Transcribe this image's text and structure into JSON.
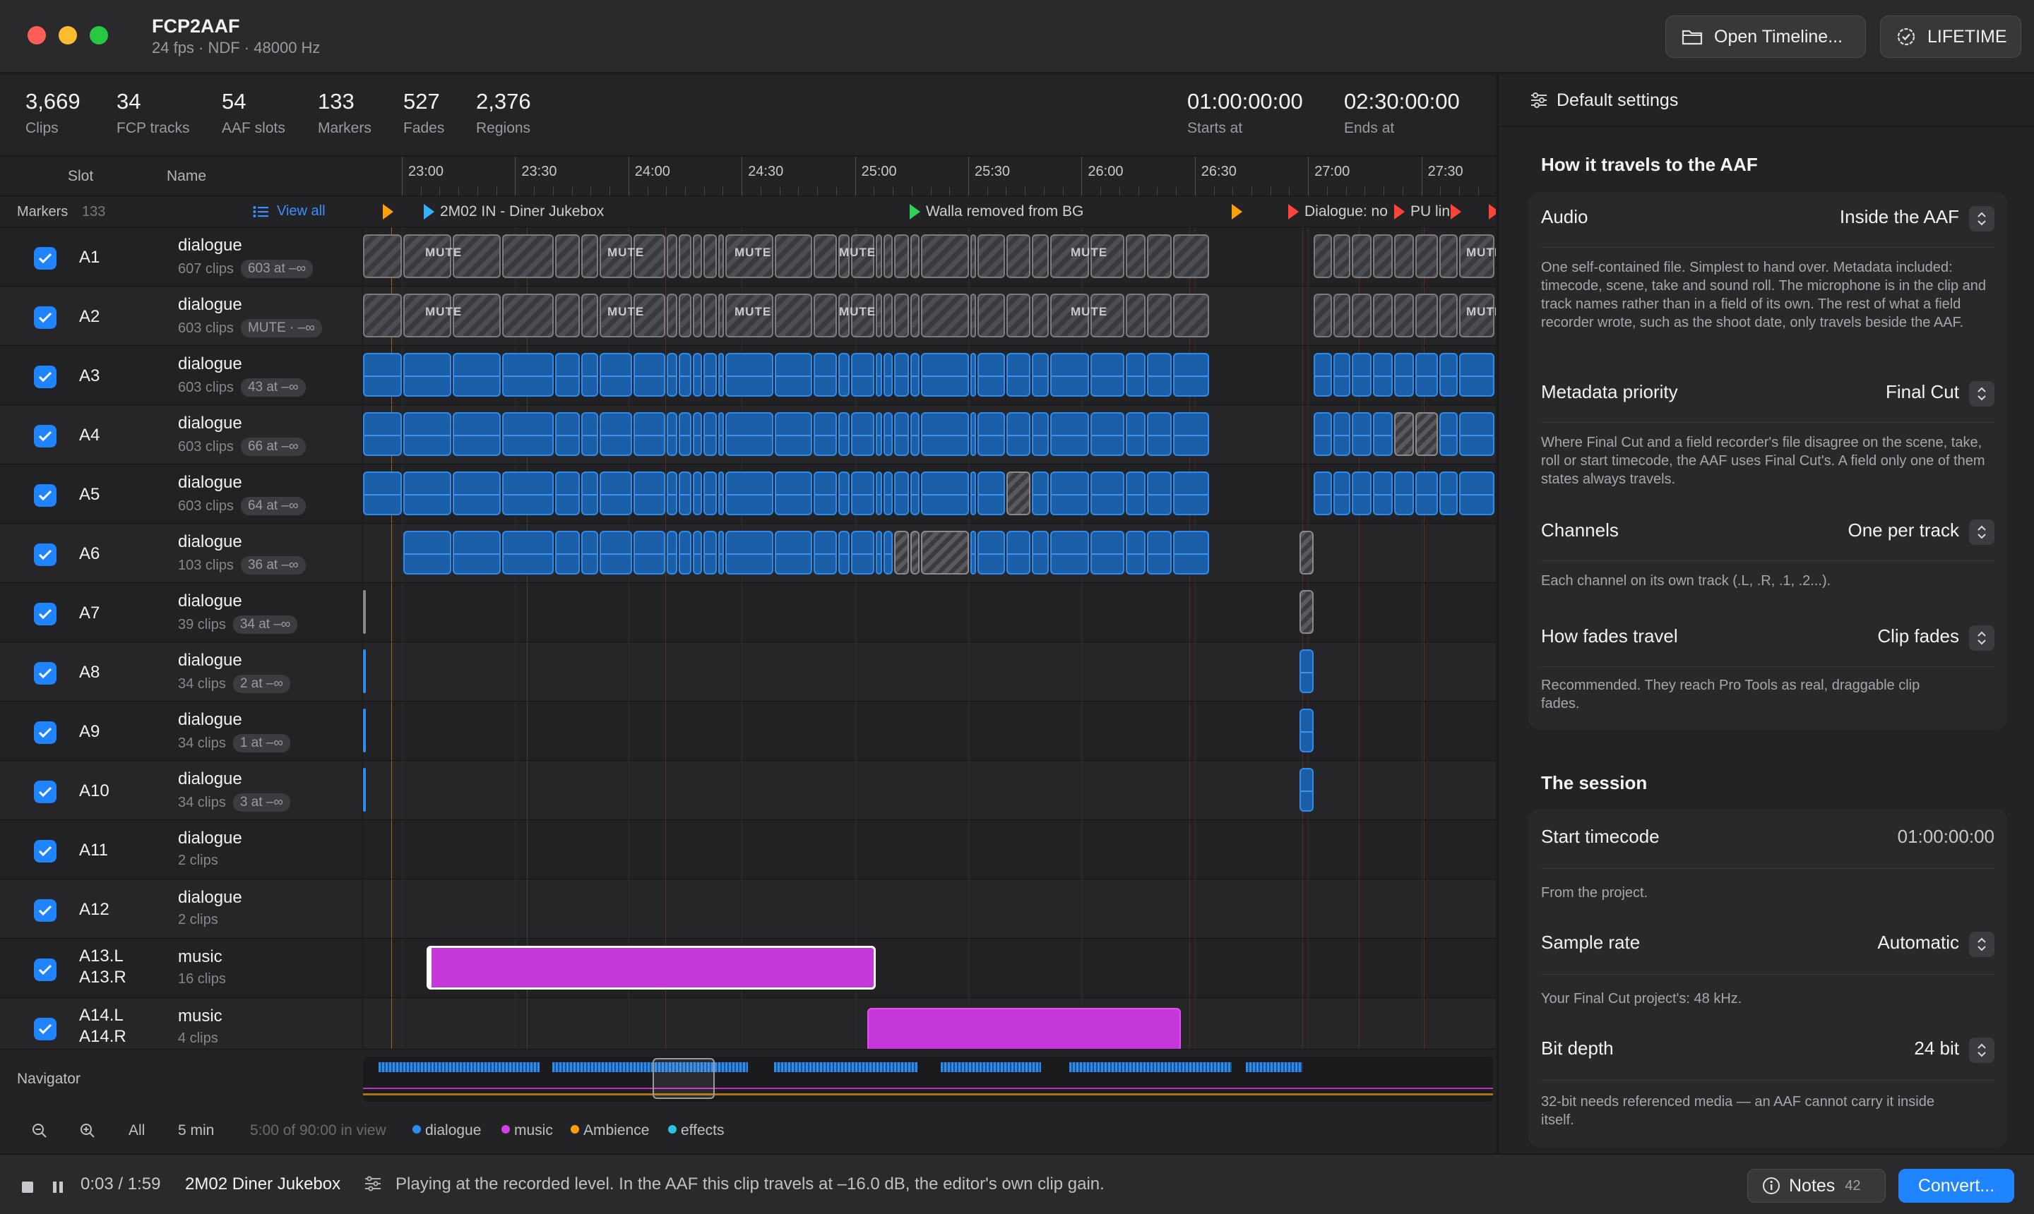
{
  "app": {
    "title": "FCP2AAF",
    "subtitle": "24 fps · NDF · 48000 Hz"
  },
  "toolbar": {
    "open_label": "Open Timeline...",
    "lifetime_label": "LIFETIME"
  },
  "stats": [
    {
      "value": "3,669",
      "label": "Clips"
    },
    {
      "value": "34",
      "label": "FCP tracks"
    },
    {
      "value": "54",
      "label": "AAF slots"
    },
    {
      "value": "133",
      "label": "Markers"
    },
    {
      "value": "527",
      "label": "Fades"
    },
    {
      "value": "2,376",
      "label": "Regions"
    }
  ],
  "time": {
    "start_value": "01:00:00:00",
    "start_label": "Starts at",
    "end_value": "02:30:00:00",
    "end_label": "Ends at"
  },
  "columns": {
    "slot": "Slot",
    "name": "Name"
  },
  "ruler": [
    "23:00",
    "23:30",
    "24:00",
    "24:30",
    "25:00",
    "25:30",
    "26:00",
    "26:30",
    "27:00",
    "27:30"
  ],
  "markers": {
    "label": "Markers",
    "count": "133",
    "view_all": "View all",
    "items": [
      {
        "text": "",
        "color": "#ff9f0a"
      },
      {
        "text": "2M02 IN - Diner Jukebox",
        "color": "#33b1ff"
      },
      {
        "text": "Walla removed from BG",
        "color": "#30d158"
      },
      {
        "text": "",
        "color": "#ff9f0a"
      },
      {
        "text": "Dialogue: no",
        "color": "#ff453a"
      },
      {
        "text": "PU lin",
        "color": "#ff453a"
      },
      {
        "text": "",
        "color": "#ff453a"
      }
    ]
  },
  "tracks": [
    {
      "slot": "A1",
      "slot2": "",
      "name": "dialogue",
      "clips": "607 clips",
      "badge": "603 at –∞"
    },
    {
      "slot": "A2",
      "slot2": "",
      "name": "dialogue",
      "clips": "603 clips",
      "badge": "MUTE · –∞"
    },
    {
      "slot": "A3",
      "slot2": "",
      "name": "dialogue",
      "clips": "603 clips",
      "badge": "43 at –∞"
    },
    {
      "slot": "A4",
      "slot2": "",
      "name": "dialogue",
      "clips": "603 clips",
      "badge": "66 at –∞"
    },
    {
      "slot": "A5",
      "slot2": "",
      "name": "dialogue",
      "clips": "603 clips",
      "badge": "64 at –∞"
    },
    {
      "slot": "A6",
      "slot2": "",
      "name": "dialogue",
      "clips": "103 clips",
      "badge": "36 at –∞"
    },
    {
      "slot": "A7",
      "slot2": "",
      "name": "dialogue",
      "clips": "39 clips",
      "badge": "34 at –∞"
    },
    {
      "slot": "A8",
      "slot2": "",
      "name": "dialogue",
      "clips": "34 clips",
      "badge": "2 at –∞"
    },
    {
      "slot": "A9",
      "slot2": "",
      "name": "dialogue",
      "clips": "34 clips",
      "badge": "1 at –∞"
    },
    {
      "slot": "A10",
      "slot2": "",
      "name": "dialogue",
      "clips": "34 clips",
      "badge": "3 at –∞"
    },
    {
      "slot": "A11",
      "slot2": "",
      "name": "dialogue",
      "clips": "2 clips",
      "badge": ""
    },
    {
      "slot": "A12",
      "slot2": "",
      "name": "dialogue",
      "clips": "2 clips",
      "badge": ""
    },
    {
      "slot": "A13.L",
      "slot2": "A13.R",
      "name": "music",
      "clips": "16 clips",
      "badge": ""
    },
    {
      "slot": "A14.L",
      "slot2": "A14.R",
      "name": "music",
      "clips": "4 clips",
      "badge": ""
    }
  ],
  "mute_text": "MUTE",
  "navigator": {
    "label": "Navigator",
    "all_label": "All",
    "span_label": "5 min",
    "in_view": "5:00 of 90:00 in view",
    "legend": [
      {
        "name": "dialogue",
        "color": "#2d8cf0"
      },
      {
        "name": "music",
        "color": "#d63ee8"
      },
      {
        "name": "Ambience",
        "color": "#ff9f0a"
      },
      {
        "name": "effects",
        "color": "#2ac5e0"
      }
    ]
  },
  "panel": {
    "header": "Default settings",
    "section1": "How it travels to the AAF",
    "audio": {
      "label": "Audio",
      "value": "Inside the AAF",
      "desc": "One self-contained file. Simplest to hand over. Metadata included: timecode, scene, take and sound roll. The microphone is in the clip and track names rather than in a field of its own. The rest of what a field recorder wrote, such as the shoot date, only travels beside the AAF."
    },
    "priority": {
      "label": "Metadata priority",
      "value": "Final Cut",
      "desc": "Where Final Cut and a field recorder's file disagree on the scene, take, roll or start timecode, the AAF uses Final Cut's. A field only one of them states always travels."
    },
    "channels": {
      "label": "Channels",
      "value": "One per track",
      "desc": "Each channel on its own track (.L, .R, .1, .2...)."
    },
    "fades": {
      "label": "How fades travel",
      "value": "Clip fades",
      "desc": "Recommended. They reach Pro Tools as real, draggable clip fades."
    },
    "section2": "The session",
    "start_tc": {
      "label": "Start timecode",
      "value": "01:00:00:00",
      "desc": "From the project."
    },
    "sample_rate": {
      "label": "Sample rate",
      "value": "Automatic",
      "desc": "Your Final Cut project's: 48 kHz."
    },
    "bit_depth": {
      "label": "Bit depth",
      "value": "24 bit",
      "desc": "32-bit needs referenced media — an AAF cannot carry it inside itself."
    }
  },
  "status": {
    "position": "0:03 / 1:59",
    "clip_name": "2M02 Diner Jukebox",
    "message": "Playing at the recorded level. In the AAF this clip travels at –16.0 dB, the editor's own clip gain.",
    "notes_label": "Notes",
    "notes_count": "42",
    "convert_label": "Convert..."
  }
}
